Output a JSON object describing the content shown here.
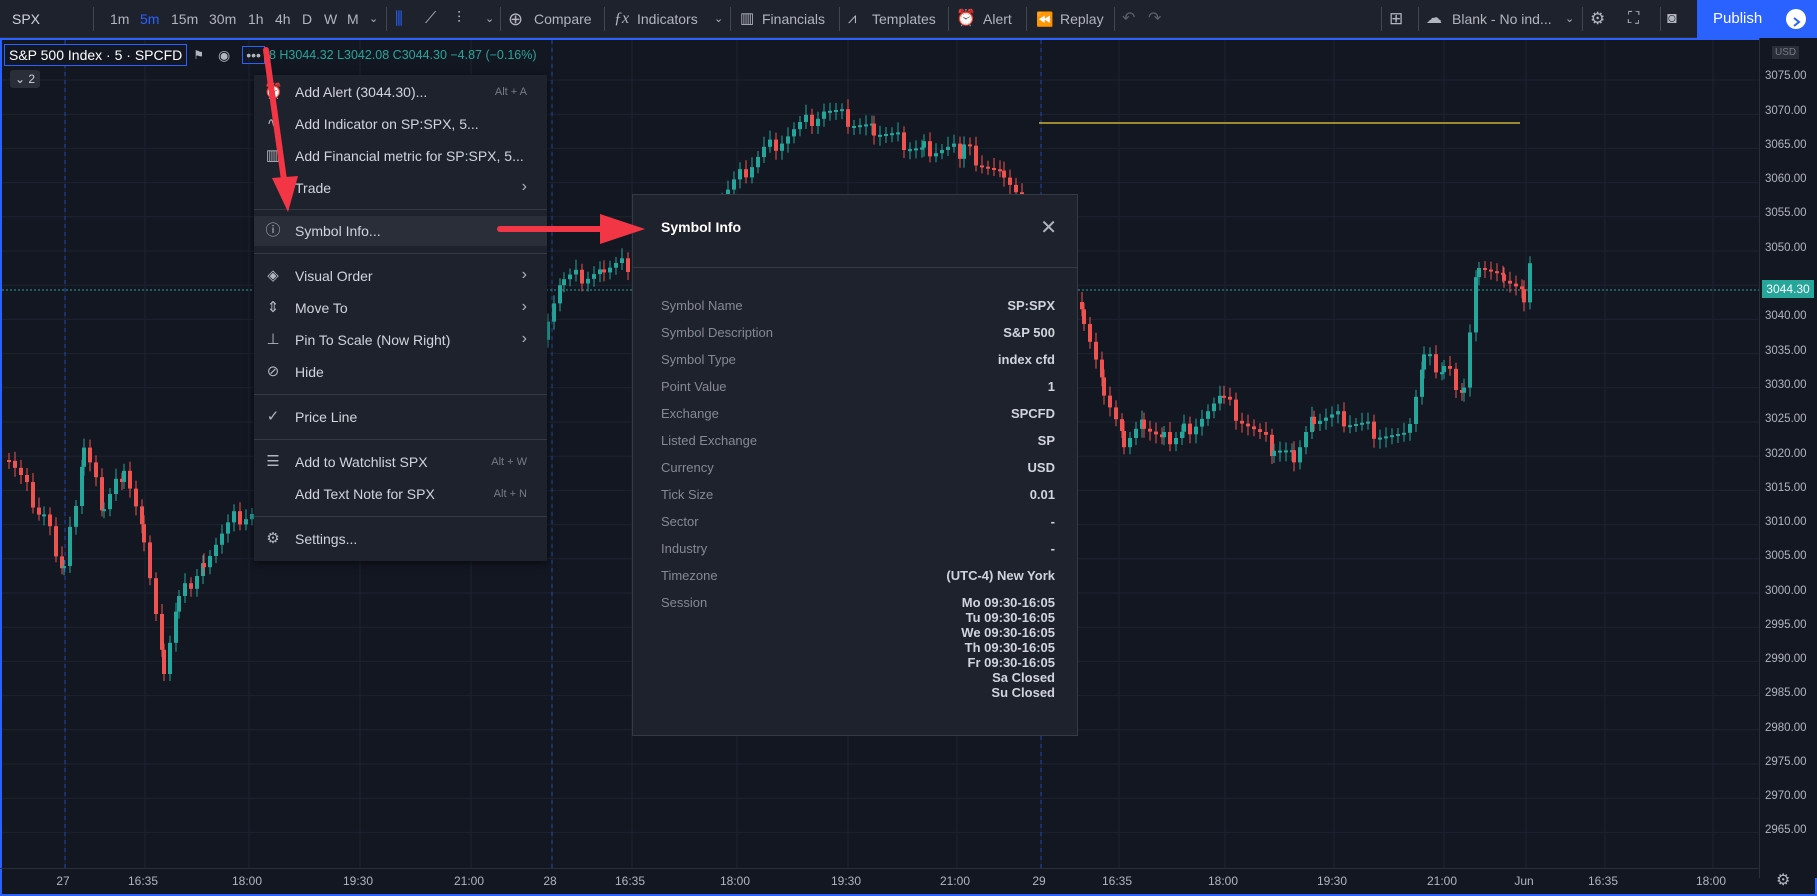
{
  "toolbar": {
    "symbol": "SPX",
    "intervals": [
      "1m",
      "5m",
      "15m",
      "30m",
      "1h",
      "4h",
      "D",
      "W",
      "M"
    ],
    "active_interval": "5m",
    "compare": "Compare",
    "indicators": "Indicators",
    "financials": "Financials",
    "templates": "Templates",
    "alert": "Alert",
    "replay": "Replay",
    "layout": "Blank - No ind...",
    "publish": "Publish"
  },
  "legend": {
    "symbol": "S&P 500 Index · 5 · SPCFD",
    "ohlc": "8 H3044.32 L3042.08 C3044.30 −4.87 (−0.16%)",
    "collapse": "2"
  },
  "context_menu": {
    "items": [
      {
        "icon": "alert-clock-icon",
        "label": "Add Alert (3044.30)...",
        "shortcut": "Alt + A"
      },
      {
        "icon": "indicator-icon",
        "label": "Add Indicator on SP:SPX, 5...",
        "shortcut": ""
      },
      {
        "icon": "financials-icon",
        "label": "Add Financial metric for SP:SPX, 5...",
        "shortcut": ""
      },
      {
        "icon": "",
        "label": "Trade",
        "shortcut": "",
        "submenu": true
      },
      {
        "icon": "info-icon",
        "label": "Symbol Info...",
        "shortcut": ""
      },
      {
        "icon": "layers-icon",
        "label": "Visual Order",
        "shortcut": "",
        "submenu": true
      },
      {
        "icon": "move-icon",
        "label": "Move To",
        "shortcut": "",
        "submenu": true
      },
      {
        "icon": "pin-icon",
        "label": "Pin To Scale (Now Right)",
        "shortcut": "",
        "submenu": true
      },
      {
        "icon": "eye-off-icon",
        "label": "Hide",
        "shortcut": ""
      },
      {
        "icon": "check-icon",
        "label": "Price Line",
        "shortcut": ""
      },
      {
        "icon": "watchlist-icon",
        "label": "Add to Watchlist SPX",
        "shortcut": "Alt + W"
      },
      {
        "icon": "",
        "label": "Add Text Note for SPX",
        "shortcut": "Alt + N"
      },
      {
        "icon": "gear-icon",
        "label": "Settings...",
        "shortcut": ""
      }
    ]
  },
  "symbol_info": {
    "title": "Symbol Info",
    "rows": [
      {
        "key": "Symbol Name",
        "value": "SP:SPX"
      },
      {
        "key": "Symbol Description",
        "value": "S&P 500"
      },
      {
        "key": "Symbol Type",
        "value": "index cfd"
      },
      {
        "key": "Point Value",
        "value": "1"
      },
      {
        "key": "Exchange",
        "value": "SPCFD"
      },
      {
        "key": "Listed Exchange",
        "value": "SP"
      },
      {
        "key": "Currency",
        "value": "USD"
      },
      {
        "key": "Tick Size",
        "value": "0.01"
      },
      {
        "key": "Sector",
        "value": "-"
      },
      {
        "key": "Industry",
        "value": "-"
      },
      {
        "key": "Timezone",
        "value": "(UTC-4) New York"
      },
      {
        "key": "Session",
        "value": "Mo 09:30-16:05\nTu 09:30-16:05\nWe 09:30-16:05\nTh 09:30-16:05\nFr 09:30-16:05\nSa Closed\nSu Closed"
      }
    ]
  },
  "price_scale": {
    "currency": "USD",
    "labels": [
      "3075.00",
      "3070.00",
      "3065.00",
      "3060.00",
      "3055.00",
      "3050.00",
      "3040.00",
      "3035.00",
      "3030.00",
      "3025.00",
      "3020.00",
      "3015.00",
      "3010.00",
      "3005.00",
      "3000.00",
      "2995.00",
      "2990.00",
      "2985.00",
      "2980.00",
      "2975.00",
      "2970.00",
      "2965.00"
    ],
    "last_price": "3044.30"
  },
  "time_scale": {
    "labels": [
      "27",
      "16:35",
      "18:00",
      "19:30",
      "21:00",
      "28",
      "16:35",
      "18:00",
      "19:30",
      "21:00",
      "29",
      "16:35",
      "18:00",
      "19:30",
      "21:00",
      "Jun",
      "16:35",
      "18:00"
    ]
  },
  "colors": {
    "up": "#26a69a",
    "down": "#ef5350",
    "accent": "#2962ff",
    "annotation": "#f23645"
  }
}
